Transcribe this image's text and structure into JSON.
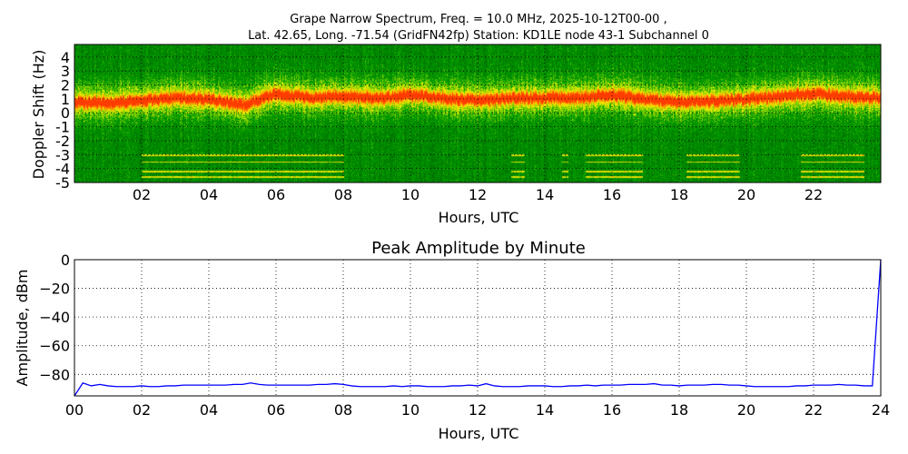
{
  "chart_data": [
    {
      "type": "heatmap",
      "title_line1": "Grape Narrow Spectrum, Freq. = 10.0 MHz, 2025-10-12T00-00 ,",
      "title_line2": "Lat.  42.65, Long. -71.54 (GridFN42fp) Station: KD1LE node 43-1 Subchannel 0",
      "xlabel": "Hours, UTC",
      "ylabel": "Doppler Shift (Hz)",
      "xlim": [
        0,
        24
      ],
      "ylim": [
        -5,
        4.9
      ],
      "xticks": [
        2,
        4,
        6,
        8,
        10,
        12,
        14,
        16,
        18,
        20,
        22
      ],
      "xtick_labels": [
        "02",
        "04",
        "06",
        "08",
        "10",
        "12",
        "14",
        "16",
        "18",
        "20",
        "22"
      ],
      "yticks": [
        -5,
        -4,
        -3,
        -2,
        -1,
        0,
        1,
        2,
        3,
        4
      ],
      "ytick_labels": [
        "-5",
        "-4",
        "-3",
        "-2",
        "-1",
        "0",
        "1",
        "2",
        "3",
        "4"
      ],
      "grid": true,
      "colormap": [
        "#0a7a00",
        "#3aa000",
        "#c8e000",
        "#ffff00",
        "#ff8000",
        "#ff3000"
      ],
      "peak_doppler_hz_by_hour": [
        0.8,
        0.7,
        0.9,
        1.1,
        1.0,
        0.6,
        1.4,
        1.1,
        1.2,
        1.1,
        1.3,
        1.1,
        0.9,
        1.1,
        1.1,
        1.1,
        1.3,
        1.0,
        0.8,
        0.9,
        1.0,
        1.2,
        1.4,
        1.2,
        1.1
      ],
      "interference_intervals_hours": [
        [
          2,
          8
        ],
        [
          13,
          13.4
        ],
        [
          14.5,
          14.7
        ],
        [
          15.2,
          16.9
        ],
        [
          18.2,
          19.8
        ],
        [
          21.6,
          23.5
        ]
      ],
      "interference_lines_hz": [
        -3,
        -3.5,
        -4.2,
        -4.6
      ]
    },
    {
      "type": "line",
      "title": "Peak Amplitude by Minute",
      "xlabel": "Hours, UTC",
      "ylabel": "Amplitude, dBm",
      "xlim": [
        0,
        24
      ],
      "ylim": [
        -95,
        0
      ],
      "xticks": [
        0,
        2,
        4,
        6,
        8,
        10,
        12,
        14,
        16,
        18,
        20,
        22,
        24
      ],
      "xtick_labels": [
        "00",
        "02",
        "04",
        "06",
        "08",
        "10",
        "12",
        "14",
        "16",
        "18",
        "20",
        "22",
        "24"
      ],
      "yticks": [
        0,
        -20,
        -40,
        -60,
        -80
      ],
      "ytick_labels": [
        "0",
        "−20",
        "−40",
        "−60",
        "−80"
      ],
      "grid": true,
      "color": "#0000ff",
      "series": [
        {
          "name": "peak amplitude",
          "x_step_hours": 0.25,
          "values": [
            -95,
            -86,
            -88,
            -87,
            -88,
            -88.5,
            -88.5,
            -88.5,
            -88,
            -88.5,
            -88.5,
            -88,
            -88,
            -87.5,
            -87.5,
            -87.5,
            -87.5,
            -87.5,
            -87.5,
            -87,
            -87,
            -86,
            -87,
            -87.5,
            -87.5,
            -87.5,
            -87.5,
            -87.5,
            -87.5,
            -87,
            -87,
            -86.5,
            -87,
            -88,
            -88.5,
            -88.5,
            -88.5,
            -88.5,
            -88,
            -88.5,
            -88,
            -88,
            -88.5,
            -88.5,
            -88.5,
            -88,
            -88,
            -87.5,
            -88,
            -86.5,
            -88,
            -88.5,
            -88.5,
            -88.5,
            -88,
            -88,
            -88,
            -88.5,
            -88.5,
            -88,
            -88,
            -87.5,
            -88,
            -87.5,
            -87.5,
            -87.5,
            -87,
            -87,
            -87,
            -86.5,
            -87.5,
            -87.5,
            -88,
            -87.5,
            -87.5,
            -87.5,
            -87,
            -87,
            -87.5,
            -87.5,
            -88,
            -88.5,
            -88.5,
            -88.5,
            -88.5,
            -88.5,
            -88,
            -88,
            -87.5,
            -87.5,
            -87.5,
            -87,
            -87.5,
            -87.5,
            -88,
            -88,
            0
          ]
        }
      ]
    }
  ]
}
